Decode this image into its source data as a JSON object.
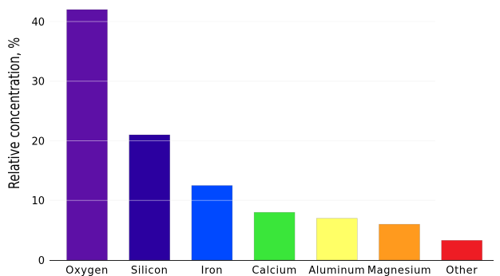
{
  "chart_data": {
    "type": "bar",
    "title": "",
    "xlabel": "",
    "ylabel": "Relative concentration, %",
    "ylim": [
      0,
      42
    ],
    "yticks": [
      0,
      10,
      20,
      30,
      40
    ],
    "grid": true,
    "categories": [
      "Oxygen",
      "Silicon",
      "Iron",
      "Calcium",
      "Aluminum",
      "Magnesium",
      "Other"
    ],
    "values": [
      42,
      21,
      12.5,
      8,
      7,
      6,
      3.3
    ],
    "colors": [
      "#5d10a6",
      "#2b00a0",
      "#0049ff",
      "#3ae63a",
      "#ffff66",
      "#ff9a1e",
      "#ee1c24"
    ]
  }
}
